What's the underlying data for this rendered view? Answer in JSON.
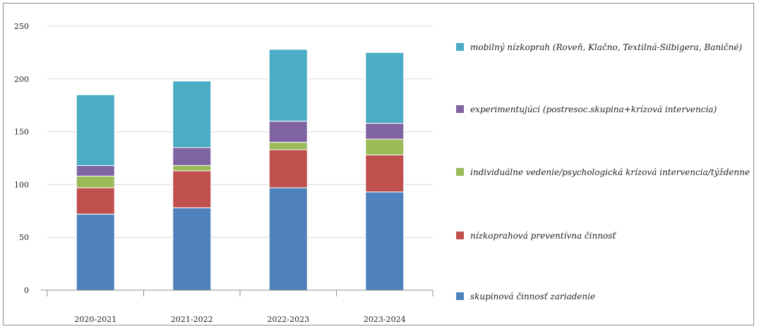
{
  "chart_data": {
    "type": "bar",
    "stacked": true,
    "categories": [
      "2020-2021",
      "2021-2022",
      "2022-2023",
      "2023-2024"
    ],
    "series": [
      {
        "name": "skupinová činnosť zariadenie",
        "color": "#4f81bd",
        "values": [
          72,
          78,
          97,
          93
        ]
      },
      {
        "name": "nízkoprahová preventívna činnosť",
        "color": "#c0504d",
        "values": [
          25,
          35,
          36,
          35
        ]
      },
      {
        "name": "individuálne vedenie/psychologická krízová intervencia/týždenne",
        "color": "#9bbb59",
        "values": [
          11,
          5,
          7,
          15
        ]
      },
      {
        "name": "experimentujúci (postresoc.skupina+krízová intervencia)",
        "color": "#8064a2",
        "values": [
          10,
          17,
          20,
          15
        ]
      },
      {
        "name": "mobilný nízkoprah (Roveň, Klačno, Textilná-Silbigera, Baničné)",
        "color": "#4bacc6",
        "values": [
          67,
          63,
          68,
          67
        ]
      }
    ],
    "yticks": [
      0,
      50,
      100,
      150,
      200,
      250
    ],
    "ylim": [
      0,
      250
    ],
    "grid": true,
    "legend_position": "right"
  }
}
